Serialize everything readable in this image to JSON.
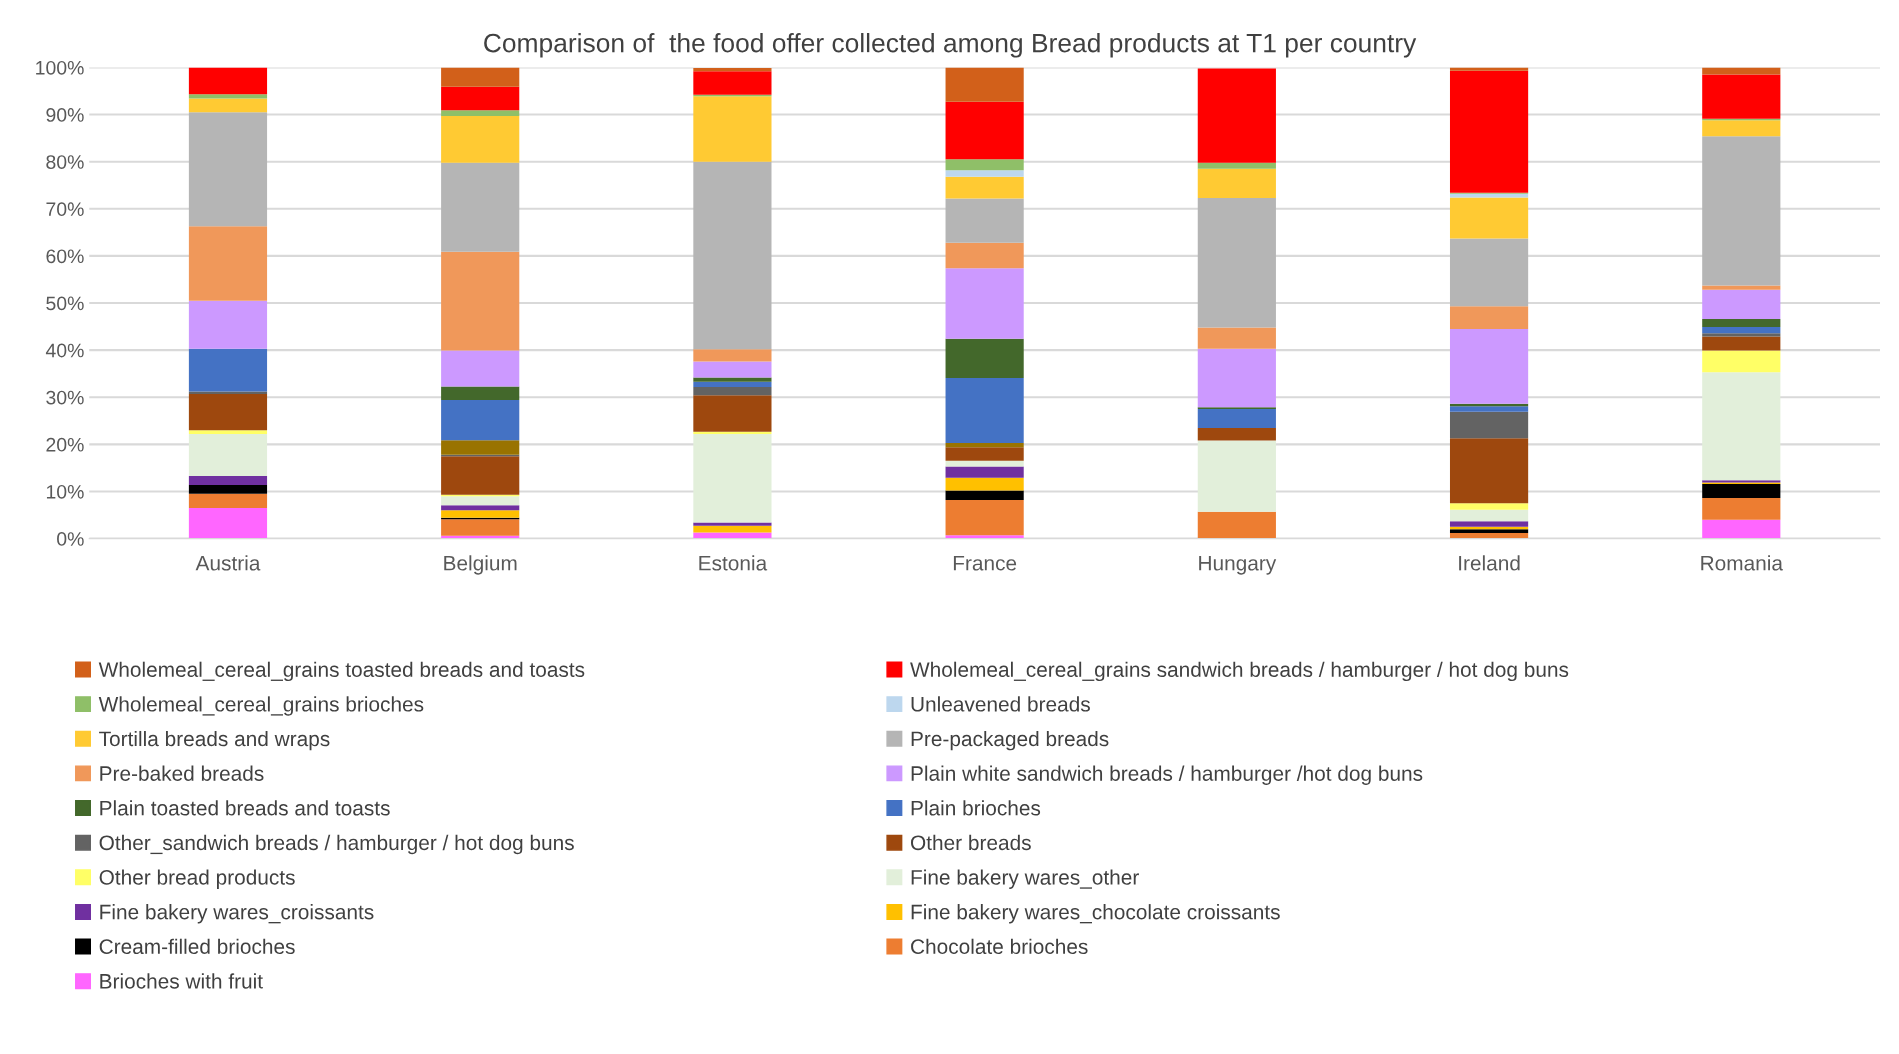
{
  "chart_data": {
    "type": "bar",
    "stacked": true,
    "title": "Comparison of  the food offer collected among Bread products at T1 per country",
    "categories": [
      "Austria",
      "Belgium",
      "Estonia",
      "France",
      "Hungary",
      "Ireland",
      "Romania"
    ],
    "ylim": [
      0,
      100
    ],
    "yticks": [
      {
        "value": 0,
        "label": "0%"
      },
      {
        "value": 10,
        "label": "10%"
      },
      {
        "value": 20,
        "label": "20%"
      },
      {
        "value": 30,
        "label": "30%"
      },
      {
        "value": 40,
        "label": "40%"
      },
      {
        "value": 50,
        "label": "50%"
      },
      {
        "value": 60,
        "label": "60%"
      },
      {
        "value": 70,
        "label": "70%"
      },
      {
        "value": 80,
        "label": "80%"
      },
      {
        "value": 90,
        "label": "90%"
      },
      {
        "value": 100,
        "label": "100%"
      }
    ],
    "grid": "y",
    "legend": "bottom",
    "series": [
      {
        "name": "Brioches with fruit",
        "color": "#ff66ff",
        "values": [
          6.5,
          0.6,
          1.3,
          0.7,
          null,
          0,
          4.0
        ]
      },
      {
        "name": "Chocolate brioches",
        "color": "#ed7d31",
        "values": [
          3.0,
          3.5,
          null,
          7.5,
          5.7,
          1.2,
          4.6
        ]
      },
      {
        "name": "Cream-filled brioches",
        "color": "#000000",
        "values": [
          1.9,
          0.3,
          0,
          2.0,
          0,
          0.8,
          3.0
        ]
      },
      {
        "name": "Fine bakery wares_chocolate croissants",
        "color": "#ffc000",
        "values": [
          0,
          1.6,
          1.4,
          2.7,
          0,
          0.5,
          0.3
        ]
      },
      {
        "name": "Fine bakery wares_croissants",
        "color": "#7030a0",
        "values": [
          1.9,
          1.1,
          0.7,
          2.4,
          0,
          1.2,
          0.5
        ]
      },
      {
        "name": "Fine bakery wares_other",
        "color": "#e2efda",
        "values": [
          8.9,
          1.9,
          18.8,
          1.2,
          15.1,
          2.4,
          22.9
        ]
      },
      {
        "name": "Other bread products",
        "color": "#ffff66",
        "values": [
          0.8,
          0.3,
          0.5,
          0,
          0,
          1.4,
          4.6
        ]
      },
      {
        "name": "Other breads",
        "color": "#9e480e",
        "values": [
          7.7,
          8.2,
          7.7,
          2.9,
          2.7,
          13.8,
          3.0
        ]
      },
      {
        "name": "Other_sandwich breads / hamburger / hot dog buns",
        "color": "#636363",
        "values": [
          0.5,
          0.3,
          1.8,
          0,
          0,
          5.6,
          0.7
        ]
      },
      {
        "color": "#997300",
        "values": [
          0,
          3.1,
          0,
          0.9,
          0,
          0,
          0
        ]
      },
      {
        "name": "Plain brioches",
        "color": "#4472c4",
        "values": [
          9.1,
          8.5,
          1.1,
          13.8,
          4.0,
          1.2,
          1.3
        ]
      },
      {
        "name": "Plain toasted breads and toasts",
        "color": "#43682b",
        "values": [
          0,
          2.9,
          0.9,
          8.3,
          0.4,
          0.5,
          1.7
        ]
      },
      {
        "name": "Plain white sandwich breads / hamburger /hot dog buns",
        "color": "#cc99ff",
        "values": [
          10.2,
          7.6,
          3.4,
          15.0,
          12.4,
          15.9,
          6.2
        ]
      },
      {
        "name": "Pre-baked breads",
        "color": "#f0985a",
        "values": [
          15.8,
          21.0,
          2.6,
          5.4,
          4.5,
          4.8,
          0.9
        ]
      },
      {
        "name": "Pre-packaged breads",
        "color": "#b5b5b5",
        "values": [
          24.2,
          18.9,
          39.8,
          9.4,
          27.5,
          14.4,
          31.7
        ]
      },
      {
        "name": "Tortilla breads and wraps",
        "color": "#ffca33",
        "values": [
          2.9,
          9.9,
          13.9,
          4.6,
          6.2,
          8.7,
          3.4
        ]
      },
      {
        "name": "Unleavened breads",
        "color": "#bdd7ee",
        "values": [
          0,
          0,
          0,
          1.4,
          0,
          0.8,
          0
        ]
      },
      {
        "name": "Wholemeal_cereal_grains brioches",
        "color": "#8fbf68",
        "values": [
          0.9,
          1.2,
          0.3,
          2.3,
          1.3,
          0.2,
          0.3
        ]
      },
      {
        "name": "Wholemeal_cereal_grains sandwich breads / hamburger / hot dog buns",
        "color": "#ff0000",
        "values": [
          5.7,
          5.0,
          5.0,
          12.2,
          20.0,
          25.9,
          9.4
        ]
      },
      {
        "name": "Wholemeal_cereal_grains toasted breads and toasts",
        "color": "#d2601a",
        "values": [
          0,
          4.1,
          0.7,
          7.3,
          0,
          0.7,
          1.5
        ]
      }
    ]
  }
}
